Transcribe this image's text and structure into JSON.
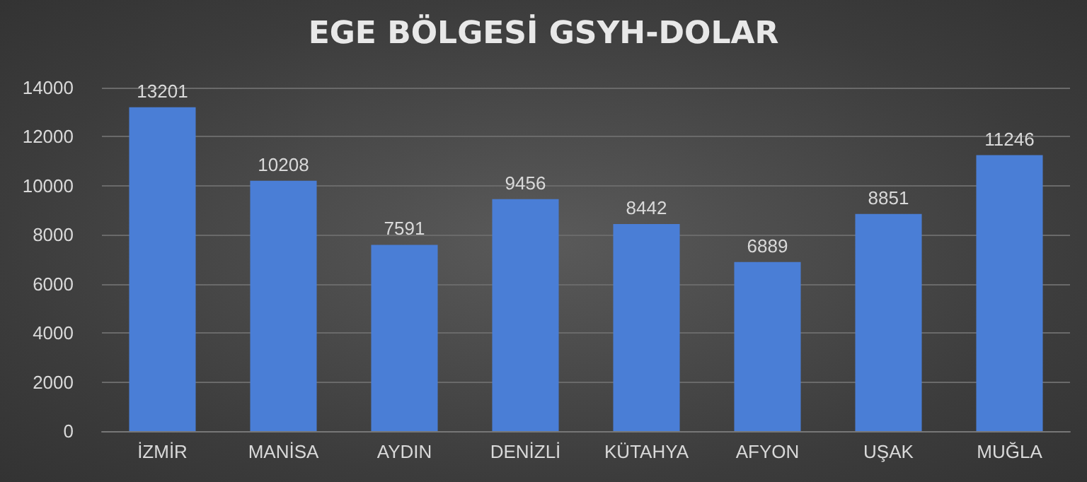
{
  "chart_data": {
    "type": "bar",
    "title": "EGE BÖLGESİ GSYH-DOLAR",
    "categories": [
      "İZMİR",
      "MANİSA",
      "AYDIN",
      "DENİZLİ",
      "KÜTAHYA",
      "AFYON",
      "UŞAK",
      "MUĞLA"
    ],
    "values": [
      13201,
      10208,
      7591,
      9456,
      8442,
      6889,
      8851,
      11246
    ],
    "color": "#4a7ed6",
    "ylim": [
      0,
      14000
    ],
    "yticks": [
      0,
      2000,
      4000,
      6000,
      8000,
      10000,
      12000,
      14000
    ],
    "grid": "y",
    "data_labels": true
  }
}
